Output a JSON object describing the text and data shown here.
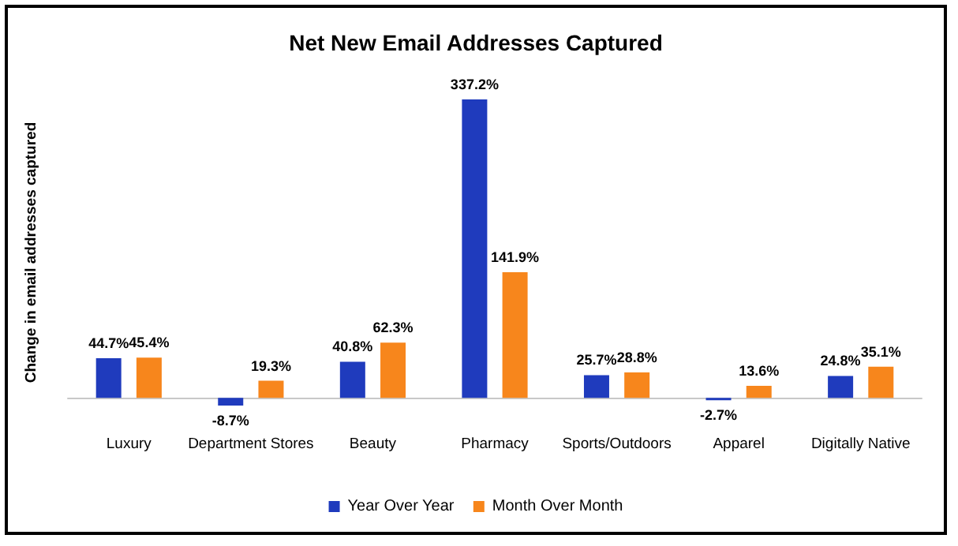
{
  "chart_data": {
    "type": "bar",
    "title": "Net New Email Addresses Captured",
    "ylabel": "Change in email addresses captured",
    "categories": [
      "Luxury",
      "Department Stores",
      "Beauty",
      "Pharmacy",
      "Sports/Outdoors",
      "Apparel",
      "Digitally Native"
    ],
    "series": [
      {
        "name": "Year Over Year",
        "color": "#1f3bbd",
        "values": [
          44.7,
          -8.7,
          40.8,
          337.2,
          25.7,
          -2.7,
          24.8
        ],
        "value_labels": [
          "44.7%",
          "-8.7%",
          "40.8%",
          "337.2%",
          "25.7%",
          "-2.7%",
          "24.8%"
        ]
      },
      {
        "name": "Month Over Month",
        "color": "#f7861c",
        "values": [
          45.4,
          19.3,
          62.3,
          141.9,
          28.8,
          13.6,
          35.1
        ],
        "value_labels": [
          "45.4%",
          "19.3%",
          "62.3%",
          "141.9%",
          "28.8%",
          "13.6%",
          "35.1%"
        ]
      }
    ],
    "relative": false,
    "legend": "bottom",
    "grid": false
  }
}
